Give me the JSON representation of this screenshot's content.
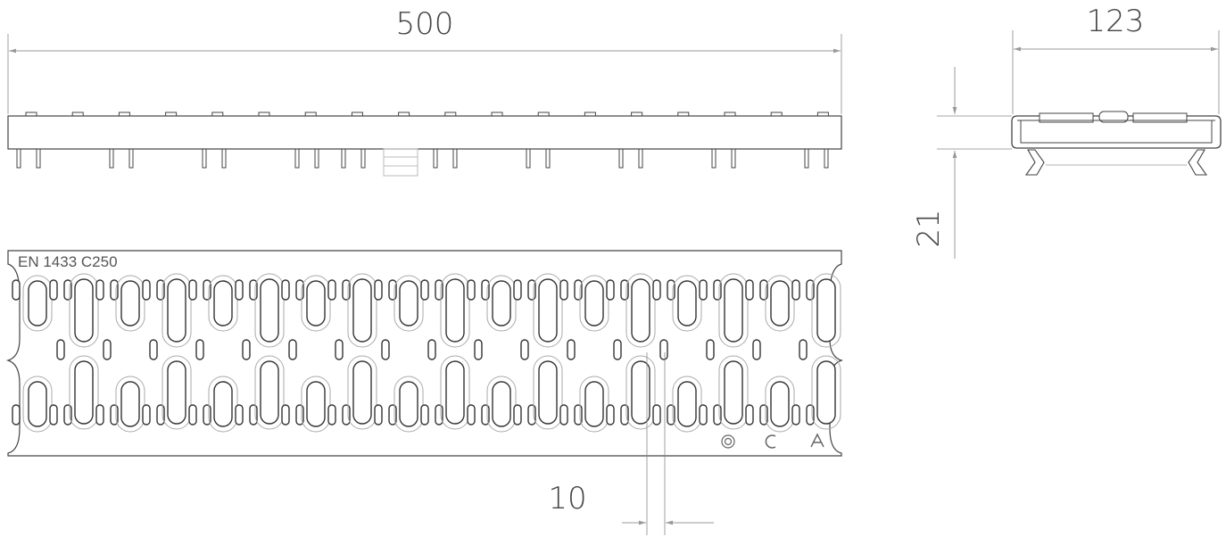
{
  "drawing": {
    "dimensions": {
      "length": "500",
      "width": "123",
      "height": "21",
      "slot_pitch": "10"
    },
    "marking": "EN  1433 C250",
    "symbols": [
      "O",
      "C",
      "A"
    ]
  }
}
